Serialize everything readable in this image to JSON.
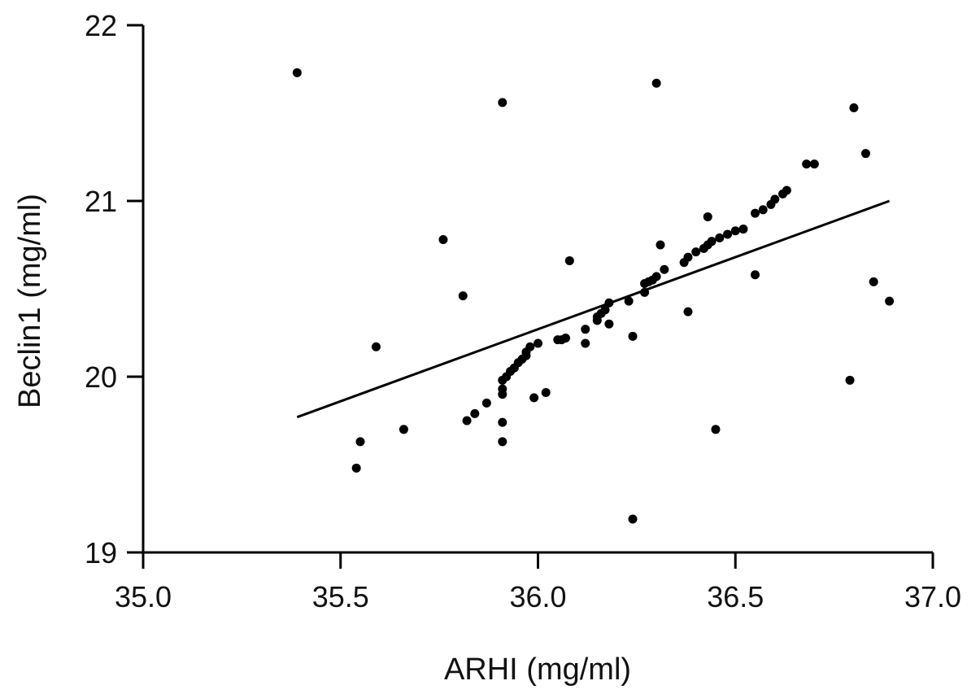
{
  "chart_data": {
    "type": "scatter",
    "title": "",
    "xlabel": "ARHI (mg/ml)",
    "ylabel": "Beclin1 (mg/ml)",
    "xlim": [
      35.0,
      37.0
    ],
    "ylim": [
      19,
      22
    ],
    "x_ticks": [
      "35.0",
      "35.5",
      "36.0",
      "36.5",
      "37.0"
    ],
    "y_ticks": [
      "19",
      "20",
      "21",
      "22"
    ],
    "grid": false,
    "legend": "none",
    "point_color": "#000000",
    "fit_line": {
      "x": [
        35.39,
        36.89
      ],
      "y": [
        19.77,
        21.0
      ]
    },
    "points": [
      {
        "x": 35.39,
        "y": 21.73
      },
      {
        "x": 35.91,
        "y": 21.56
      },
      {
        "x": 36.3,
        "y": 21.67
      },
      {
        "x": 36.8,
        "y": 21.53
      },
      {
        "x": 36.83,
        "y": 21.27
      },
      {
        "x": 36.68,
        "y": 21.21
      },
      {
        "x": 36.7,
        "y": 21.21
      },
      {
        "x": 36.63,
        "y": 21.06
      },
      {
        "x": 36.62,
        "y": 21.04
      },
      {
        "x": 36.6,
        "y": 21.01
      },
      {
        "x": 36.59,
        "y": 20.98
      },
      {
        "x": 36.57,
        "y": 20.95
      },
      {
        "x": 36.55,
        "y": 20.93
      },
      {
        "x": 36.43,
        "y": 20.91
      },
      {
        "x": 36.52,
        "y": 20.84
      },
      {
        "x": 36.5,
        "y": 20.83
      },
      {
        "x": 36.48,
        "y": 20.81
      },
      {
        "x": 36.46,
        "y": 20.79
      },
      {
        "x": 36.44,
        "y": 20.77
      },
      {
        "x": 36.43,
        "y": 20.75
      },
      {
        "x": 36.42,
        "y": 20.73
      },
      {
        "x": 36.4,
        "y": 20.71
      },
      {
        "x": 36.38,
        "y": 20.68
      },
      {
        "x": 36.37,
        "y": 20.65
      },
      {
        "x": 36.31,
        "y": 20.75
      },
      {
        "x": 35.76,
        "y": 20.78
      },
      {
        "x": 36.08,
        "y": 20.66
      },
      {
        "x": 36.32,
        "y": 20.61
      },
      {
        "x": 36.3,
        "y": 20.57
      },
      {
        "x": 36.29,
        "y": 20.55
      },
      {
        "x": 36.28,
        "y": 20.54
      },
      {
        "x": 36.27,
        "y": 20.53
      },
      {
        "x": 36.27,
        "y": 20.48
      },
      {
        "x": 36.55,
        "y": 20.58
      },
      {
        "x": 36.85,
        "y": 20.54
      },
      {
        "x": 36.89,
        "y": 20.43
      },
      {
        "x": 35.81,
        "y": 20.46
      },
      {
        "x": 36.23,
        "y": 20.43
      },
      {
        "x": 36.18,
        "y": 20.42
      },
      {
        "x": 36.17,
        "y": 20.38
      },
      {
        "x": 36.16,
        "y": 20.36
      },
      {
        "x": 36.15,
        "y": 20.34
      },
      {
        "x": 36.15,
        "y": 20.32
      },
      {
        "x": 36.18,
        "y": 20.3
      },
      {
        "x": 36.38,
        "y": 20.37
      },
      {
        "x": 36.12,
        "y": 20.27
      },
      {
        "x": 36.24,
        "y": 20.23
      },
      {
        "x": 36.07,
        "y": 20.22
      },
      {
        "x": 36.06,
        "y": 20.21
      },
      {
        "x": 36.05,
        "y": 20.21
      },
      {
        "x": 36.12,
        "y": 20.19
      },
      {
        "x": 36.0,
        "y": 20.19
      },
      {
        "x": 35.98,
        "y": 20.17
      },
      {
        "x": 35.97,
        "y": 20.14
      },
      {
        "x": 35.97,
        "y": 20.12
      },
      {
        "x": 35.96,
        "y": 20.1
      },
      {
        "x": 35.95,
        "y": 20.08
      },
      {
        "x": 35.94,
        "y": 20.05
      },
      {
        "x": 35.93,
        "y": 20.03
      },
      {
        "x": 35.92,
        "y": 20.0
      },
      {
        "x": 35.91,
        "y": 19.98
      },
      {
        "x": 35.59,
        "y": 20.17
      },
      {
        "x": 36.79,
        "y": 19.98
      },
      {
        "x": 35.91,
        "y": 19.93
      },
      {
        "x": 35.91,
        "y": 19.9
      },
      {
        "x": 35.99,
        "y": 19.88
      },
      {
        "x": 36.02,
        "y": 19.91
      },
      {
        "x": 35.87,
        "y": 19.85
      },
      {
        "x": 35.84,
        "y": 19.79
      },
      {
        "x": 35.82,
        "y": 19.75
      },
      {
        "x": 35.91,
        "y": 19.74
      },
      {
        "x": 35.66,
        "y": 19.7
      },
      {
        "x": 36.45,
        "y": 19.7
      },
      {
        "x": 35.55,
        "y": 19.63
      },
      {
        "x": 35.91,
        "y": 19.63
      },
      {
        "x": 35.54,
        "y": 19.48
      },
      {
        "x": 36.24,
        "y": 19.19
      }
    ]
  }
}
